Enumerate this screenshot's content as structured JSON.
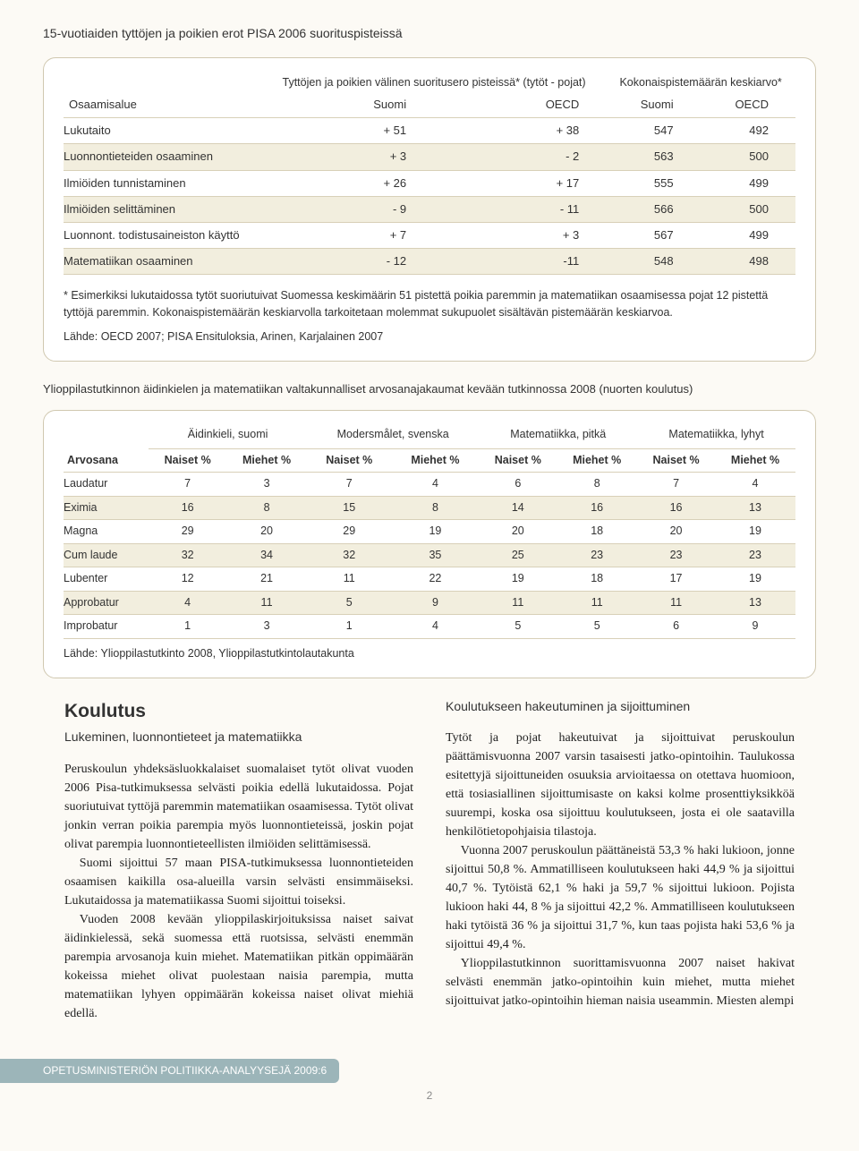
{
  "title": "15-vuotiaiden tyttöjen ja poikien erot PISA 2006 suorituspisteissä",
  "pisa_table": {
    "group1_head": "Tyttöjen ja poikien välinen suoritusero pisteissä* (tytöt - pojat)",
    "group2_head": "Kokonaispistemäärän keskiarvo*",
    "col_labels": [
      "Osaamisalue",
      "Suomi",
      "OECD",
      "Suomi",
      "OECD"
    ],
    "rows": [
      {
        "label": "Lukutaito",
        "v": [
          "+ 51",
          "+ 38",
          "547",
          "492"
        ]
      },
      {
        "label": "Luonnontieteiden osaaminen",
        "v": [
          "+ 3",
          "- 2",
          "563",
          "500"
        ]
      },
      {
        "label": "Ilmiöiden tunnistaminen",
        "v": [
          "+ 26",
          "+ 17",
          "555",
          "499"
        ]
      },
      {
        "label": "Ilmiöiden selittäminen",
        "v": [
          "- 9",
          "- 11",
          "566",
          "500"
        ]
      },
      {
        "label": "Luonnont. todistusaineiston käyttö",
        "v": [
          "+ 7",
          "+ 3",
          "567",
          "499"
        ]
      },
      {
        "label": "Matematiikan osaaminen",
        "v": [
          "- 12",
          "-11",
          "548",
          "498"
        ]
      }
    ],
    "footnote": "* Esimerkiksi lukutaidossa tytöt suoriutuivat Suomessa keskimäärin 51 pistettä poikia paremmin ja matematiikan osaamisessa pojat 12 pistettä tyttöjä paremmin. Kokonaispistemäärän keskiarvolla tarkoitetaan molemmat sukupuolet sisältävän pistemäärän keskiarvoa.",
    "source": "Lähde: OECD 2007; PISA Ensituloksia, Arinen, Karjalainen 2007"
  },
  "grades_section": {
    "title": "Ylioppilastutkinnon äidinkielen ja matematiikan valtakunnalliset arvosanajakaumat kevään tutkinnossa 2008 (nuorten koulutus)",
    "subjects": [
      "Äidinkieli, suomi",
      "Modersmålet, svenska",
      "Matematiikka, pitkä",
      "Matematiikka, lyhyt"
    ],
    "gender_cols": [
      "Naiset %",
      "Miehet %",
      "Naiset %",
      "Miehet %",
      "Naiset %",
      "Miehet %",
      "Naiset %",
      "Miehet %"
    ],
    "first_col": "Arvosana",
    "rows": [
      {
        "label": "Laudatur",
        "v": [
          "7",
          "3",
          "7",
          "4",
          "6",
          "8",
          "7",
          "4"
        ]
      },
      {
        "label": "Eximia",
        "v": [
          "16",
          "8",
          "15",
          "8",
          "14",
          "16",
          "16",
          "13"
        ]
      },
      {
        "label": "Magna",
        "v": [
          "29",
          "20",
          "29",
          "19",
          "20",
          "18",
          "20",
          "19"
        ]
      },
      {
        "label": "Cum laude",
        "v": [
          "32",
          "34",
          "32",
          "35",
          "25",
          "23",
          "23",
          "23"
        ]
      },
      {
        "label": "Lubenter",
        "v": [
          "12",
          "21",
          "11",
          "22",
          "19",
          "18",
          "17",
          "19"
        ]
      },
      {
        "label": "Approbatur",
        "v": [
          "4",
          "11",
          "5",
          "9",
          "11",
          "11",
          "11",
          "13"
        ]
      },
      {
        "label": "Improbatur",
        "v": [
          "1",
          "3",
          "1",
          "4",
          "5",
          "5",
          "6",
          "9"
        ]
      }
    ],
    "source": "Lähde: Ylioppilastutkinto 2008, Ylioppilastutkintolautakunta"
  },
  "body": {
    "left_h2": "Koulutus",
    "left_h3": "Lukeminen, luonnontieteet ja matematiikka",
    "left_p1": "Peruskoulun yhdeksäsluokkalaiset suomalaiset tytöt olivat vuoden 2006 Pisa-tutkimuksessa selvästi poikia edellä lukutaidossa. Pojat suoriutuivat tyttöjä paremmin matematiikan osaamisessa. Tytöt olivat jonkin verran poikia parempia myös luonnontieteissä, joskin pojat olivat parempia luonnontieteellisten ilmiöiden selittämisessä.",
    "left_p2": "Suomi sijoittui 57 maan PISA-tutkimuksessa luonnontieteiden osaamisen kaikilla osa-alueilla varsin selvästi ensimmäiseksi. Lukutaidossa ja matematiikassa Suomi sijoittui toiseksi.",
    "left_p3": "Vuoden 2008 kevään ylioppilaskirjoituksissa naiset saivat äidinkielessä, sekä suomessa että ruotsissa, selvästi enemmän parempia arvosanoja kuin miehet. Matematiikan pitkän oppimäärän kokeissa miehet olivat puolestaan naisia parempia, mutta matematiikan lyhyen oppimäärän kokeissa naiset olivat miehiä edellä.",
    "right_h4": "Koulutukseen hakeutuminen ja sijoittuminen",
    "right_p1": "Tytöt ja pojat hakeutuivat ja sijoittuivat peruskoulun päättämisvuonna 2007 varsin tasaisesti jatko-opintoihin. Taulukossa esitettyjä sijoittuneiden osuuksia arvioitaessa on otettava huomioon, että tosiasiallinen sijoittumisaste on kaksi kolme prosenttiyksikköä suurempi, koska osa sijoittuu koulutukseen, josta ei ole saatavilla henkilötietopohjaisia tilastoja.",
    "right_p2": "Vuonna 2007 peruskoulun päättäneistä 53,3 % haki lukioon, jonne sijoittui 50,8 %. Ammatilliseen koulutukseen haki 44,9 % ja sijoittui 40,7 %. Tytöistä 62,1 % haki ja 59,7 % sijoittui lukioon. Pojista lukioon haki 44, 8 % ja sijoittui 42,2 %. Ammatilliseen koulutukseen haki tytöistä 36 % ja sijoittui 31,7 %, kun taas pojista haki 53,6 % ja sijoittui 49,4 %.",
    "right_p3": "Ylioppilastutkinnon suorittamisvuonna 2007 naiset hakivat selvästi enemmän jatko-opintoihin kuin miehet, mutta miehet sijoittuivat jatko-opintoihin hieman naisia useammin. Miesten alempi"
  },
  "footer": {
    "bar": "OPETUSMINISTERIÖN POLITIIKKA-ANALYYSEJÄ 2009:6",
    "page": "2"
  }
}
